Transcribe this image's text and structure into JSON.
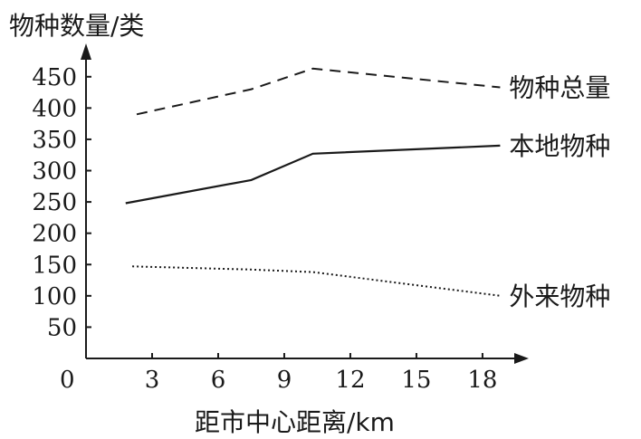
{
  "chart_data": {
    "type": "line",
    "ylabel": "物种数量/类",
    "xlabel": "距市中心距离/km",
    "origin_label": "0",
    "x_ticks": [
      3,
      6,
      9,
      12,
      15,
      18
    ],
    "y_ticks": [
      50,
      100,
      150,
      200,
      250,
      300,
      350,
      400,
      450
    ],
    "xlim": [
      0,
      20
    ],
    "ylim": [
      0,
      500
    ],
    "grid": false,
    "series": [
      {
        "name": "物种总量",
        "style": "dashed",
        "color": "#1a1a1a",
        "points": [
          [
            2.3,
            390
          ],
          [
            7.5,
            430
          ],
          [
            10.3,
            463
          ],
          [
            18.8,
            433
          ]
        ]
      },
      {
        "name": "本地物种",
        "style": "solid",
        "color": "#1a1a1a",
        "points": [
          [
            1.8,
            248
          ],
          [
            7.5,
            285
          ],
          [
            10.3,
            327
          ],
          [
            18.8,
            340
          ]
        ]
      },
      {
        "name": "外来物种",
        "style": "dotted",
        "color": "#1a1a1a",
        "points": [
          [
            2.1,
            147
          ],
          [
            7.5,
            142
          ],
          [
            10.3,
            138
          ],
          [
            18.8,
            100
          ]
        ]
      }
    ]
  }
}
